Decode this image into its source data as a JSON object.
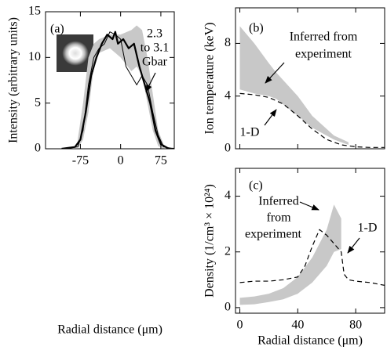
{
  "chart_data": [
    {
      "type": "line",
      "label": "(a)",
      "x_label": "Radial distance (μm)",
      "y_label": "Intensity (arbitrary units)",
      "xlim": [
        -140,
        100
      ],
      "ylim": [
        0,
        15
      ],
      "xticks": [
        -75,
        0,
        75
      ],
      "yticks": [
        0,
        5,
        10,
        15
      ],
      "xtick_labels": true,
      "bands": [
        {
          "color": "#c8c8c8",
          "x": [
            -80,
            -70,
            -60,
            -50,
            -40,
            -20,
            0,
            20,
            30,
            40,
            50,
            60,
            70,
            80
          ],
          "high": [
            1,
            5,
            10,
            11.5,
            12,
            12.5,
            12.5,
            13,
            13.5,
            13,
            10,
            6,
            2,
            0.5
          ],
          "low": [
            0,
            1,
            4,
            9,
            10.5,
            11,
            10,
            8.5,
            9,
            8,
            5,
            2,
            0.3,
            0
          ]
        }
      ],
      "series": [
        {
          "color": "#000",
          "width": 2.2,
          "dash": false,
          "x": [
            -110,
            -85,
            -75,
            -65,
            -55,
            -45,
            -35,
            -25,
            -15,
            -10,
            -5,
            5,
            15,
            25,
            35,
            45,
            55,
            65,
            75,
            90,
            100
          ],
          "values": [
            0,
            0.2,
            1,
            4,
            8,
            10,
            11.5,
            12.5,
            12,
            12.8,
            11.5,
            12,
            11,
            11.5,
            9,
            7,
            5,
            2,
            0.5,
            0,
            0
          ]
        },
        {
          "color": "#000",
          "width": 1,
          "dash": false,
          "x": [
            -110,
            -80,
            -70,
            -60,
            -50,
            -40,
            -30,
            -20,
            -10,
            0,
            10,
            20,
            30,
            40,
            50,
            60,
            70,
            80,
            100
          ],
          "values": [
            0,
            0.2,
            2,
            7,
            10,
            11,
            11.5,
            12.8,
            12.5,
            12,
            9,
            8,
            7,
            8,
            7,
            4,
            1.5,
            0.2,
            0
          ]
        }
      ],
      "annotations": [
        {
          "lines": [
            "2.3",
            "to 3.1",
            "Gbar"
          ]
        }
      ]
    },
    {
      "type": "line",
      "label": "(b)",
      "y_label": "Ion temperature (keV)",
      "xlim": [
        -3,
        100
      ],
      "ylim": [
        0,
        10.7
      ],
      "xticks": [
        0,
        40,
        80
      ],
      "yticks": [
        0,
        4,
        8
      ],
      "xtick_labels": false,
      "bands": [
        {
          "color": "#c8c8c8",
          "x": [
            0,
            10,
            20,
            25,
            40,
            50,
            65,
            75
          ],
          "high": [
            9.3,
            8,
            6.5,
            5.8,
            4,
            2.5,
            1,
            0.5
          ],
          "low": [
            4.5,
            4.2,
            4,
            3.8,
            2.5,
            1.6,
            0.7,
            0.3
          ]
        }
      ],
      "series": [
        {
          "color": "#000",
          "width": 1.2,
          "dash": true,
          "x": [
            0,
            10,
            20,
            30,
            40,
            50,
            60,
            70,
            80,
            90,
            100
          ],
          "values": [
            4.2,
            4.1,
            3.9,
            3.4,
            2.5,
            1.5,
            0.7,
            0.3,
            0.15,
            0.1,
            0.1
          ]
        }
      ],
      "annotations": [
        {
          "lines": [
            "Inferred from",
            "experiment"
          ]
        },
        {
          "lines": [
            "1-D"
          ]
        }
      ]
    },
    {
      "type": "line",
      "label": "(c)",
      "x_label": "Radial distance (μm)",
      "y_label": "Density (1/cm³ × 10²⁴)",
      "xlim": [
        -3,
        100
      ],
      "ylim": [
        -0.2,
        5
      ],
      "xticks": [
        0,
        40,
        80
      ],
      "yticks": [
        0,
        2,
        4
      ],
      "xtick_labels": true,
      "bands": [
        {
          "color": "#c8c8c8",
          "x": [
            0,
            10,
            20,
            30,
            40,
            50,
            60,
            65,
            70
          ],
          "high": [
            0.35,
            0.4,
            0.5,
            0.7,
            1.1,
            1.8,
            2.8,
            3.7,
            3.2
          ],
          "low": [
            0.1,
            0.12,
            0.2,
            0.3,
            0.5,
            0.9,
            1.5,
            2.0,
            2.1
          ]
        }
      ],
      "series": [
        {
          "color": "#000",
          "width": 1.2,
          "dash": true,
          "x": [
            0,
            10,
            20,
            30,
            40,
            45,
            50,
            55,
            60,
            65,
            70,
            72,
            75,
            80,
            90,
            100
          ],
          "values": [
            0.9,
            0.95,
            0.95,
            1.0,
            1.1,
            1.5,
            2.2,
            2.8,
            2.6,
            2.3,
            2.0,
            1.2,
            1.0,
            0.95,
            0.9,
            0.8
          ]
        }
      ],
      "annotations": [
        {
          "lines": [
            "Inferred",
            "from",
            "experiment"
          ]
        },
        {
          "lines": [
            "1-D"
          ]
        }
      ]
    }
  ]
}
